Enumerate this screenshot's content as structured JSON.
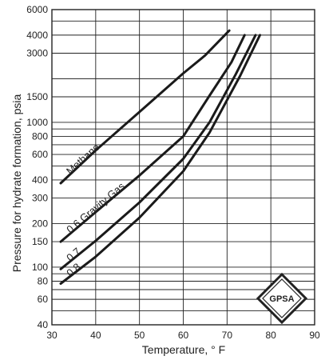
{
  "chart_data": {
    "type": "line",
    "title": "",
    "xlabel": "Temperature, ° F",
    "ylabel": "Pressure for hydrate formation, psia",
    "xlim": [
      30,
      90
    ],
    "ylim": [
      40,
      6000
    ],
    "y_scale": "log",
    "grid": true,
    "x_ticks": [
      "30",
      "40",
      "50",
      "60",
      "70",
      "80",
      "90"
    ],
    "y_ticks": [
      {
        "value": 40,
        "label": "40"
      },
      {
        "value": 60,
        "label": "60"
      },
      {
        "value": 80,
        "label": "80"
      },
      {
        "value": 100,
        "label": "100"
      },
      {
        "value": 150,
        "label": "150"
      },
      {
        "value": 200,
        "label": "200"
      },
      {
        "value": 300,
        "label": "300"
      },
      {
        "value": 400,
        "label": "400"
      },
      {
        "value": 600,
        "label": "600"
      },
      {
        "value": 800,
        "label": "800"
      },
      {
        "value": 1000,
        "label": "1000"
      },
      {
        "value": 1500,
        "label": "1500"
      },
      {
        "value": 3000,
        "label": "3000"
      },
      {
        "value": 4000,
        "label": "4000"
      },
      {
        "value": 6000,
        "label": "6000"
      }
    ],
    "y_grid_values": [
      40,
      50,
      60,
      70,
      80,
      90,
      100,
      150,
      200,
      300,
      400,
      500,
      600,
      700,
      800,
      900,
      1000,
      1500,
      2000,
      3000,
      4000,
      5000,
      6000
    ],
    "series": [
      {
        "name": "Methane",
        "points": [
          [
            32,
            380
          ],
          [
            40,
            640
          ],
          [
            50,
            1180
          ],
          [
            60,
            2180
          ],
          [
            65,
            2900
          ],
          [
            70.5,
            4300
          ]
        ]
      },
      {
        "name": "0.6 Gravity Gas",
        "points": [
          [
            32,
            150
          ],
          [
            40,
            240
          ],
          [
            50,
            430
          ],
          [
            60,
            800
          ],
          [
            66,
            1530
          ],
          [
            71,
            2600
          ],
          [
            74,
            4000
          ]
        ]
      },
      {
        "name": "0.7",
        "points": [
          [
            32,
            97
          ],
          [
            40,
            152
          ],
          [
            50,
            280
          ],
          [
            60,
            560
          ],
          [
            66,
            1000
          ],
          [
            72,
            2150
          ],
          [
            76.5,
            4000
          ]
        ]
      },
      {
        "name": "0.8",
        "points": [
          [
            32,
            77
          ],
          [
            40,
            118
          ],
          [
            50,
            220
          ],
          [
            60,
            460
          ],
          [
            66,
            850
          ],
          [
            73,
            2100
          ],
          [
            77.5,
            4000
          ]
        ]
      }
    ],
    "logo_text": "GPSA"
  }
}
